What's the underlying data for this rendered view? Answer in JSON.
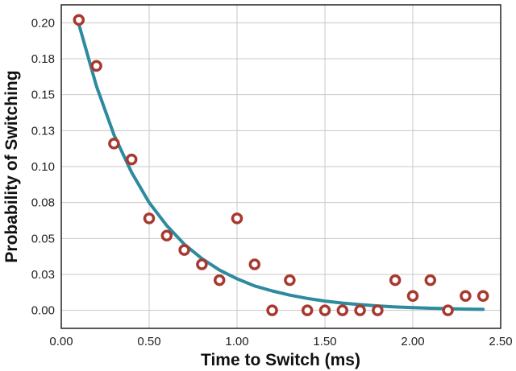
{
  "chart_data": {
    "type": "scatter",
    "xlabel": "Time to Switch (ms)",
    "ylabel": "Probability of Switching",
    "xlim": [
      0,
      2.5
    ],
    "ylim": [
      -0.0125,
      0.2125
    ],
    "x_ticks": [
      0.0,
      0.5,
      1.0,
      1.5,
      2.0,
      2.5
    ],
    "x_tick_labels": [
      "0.00",
      "0.50",
      "1.00",
      "1.50",
      "2.00",
      "2.50"
    ],
    "y_ticks": [
      0.0,
      0.025,
      0.05,
      0.075,
      0.1,
      0.125,
      0.15,
      0.175,
      0.2
    ],
    "y_tick_labels": [
      "0.00",
      "0.03",
      "0.05",
      "0.08",
      "0.10",
      "0.13",
      "0.15",
      "0.18",
      "0.20"
    ],
    "grid": true,
    "series": [
      {
        "kind": "points",
        "color": "#a8392f",
        "x": [
          0.1,
          0.2,
          0.3,
          0.4,
          0.5,
          0.6,
          0.7,
          0.8,
          0.9,
          1.0,
          1.1,
          1.2,
          1.3,
          1.4,
          1.5,
          1.6,
          1.7,
          1.8,
          1.9,
          2.0,
          2.1,
          2.2,
          2.3,
          2.4
        ],
        "y": [
          0.202,
          0.17,
          0.116,
          0.105,
          0.064,
          0.052,
          0.042,
          0.032,
          0.021,
          0.064,
          0.032,
          0.0,
          0.021,
          0.0,
          0.0,
          0.0,
          0.0,
          0.0,
          0.021,
          0.01,
          0.021,
          0.0,
          0.01,
          0.01
        ]
      },
      {
        "kind": "line",
        "color": "#2e8a9e",
        "x": [
          0.1,
          0.2,
          0.3,
          0.4,
          0.5,
          0.6,
          0.7,
          0.8,
          0.9,
          1.0,
          1.1,
          1.2,
          1.3,
          1.4,
          1.5,
          1.6,
          1.7,
          1.8,
          1.9,
          2.0,
          2.1,
          2.2,
          2.3,
          2.4
        ],
        "y": [
          0.199,
          0.156,
          0.122,
          0.096,
          0.075,
          0.059,
          0.046,
          0.036,
          0.028,
          0.022,
          0.017,
          0.0135,
          0.0106,
          0.0083,
          0.0065,
          0.0051,
          0.004,
          0.0031,
          0.0024,
          0.0019,
          0.0015,
          0.0012,
          0.0009,
          0.0007
        ]
      }
    ]
  }
}
